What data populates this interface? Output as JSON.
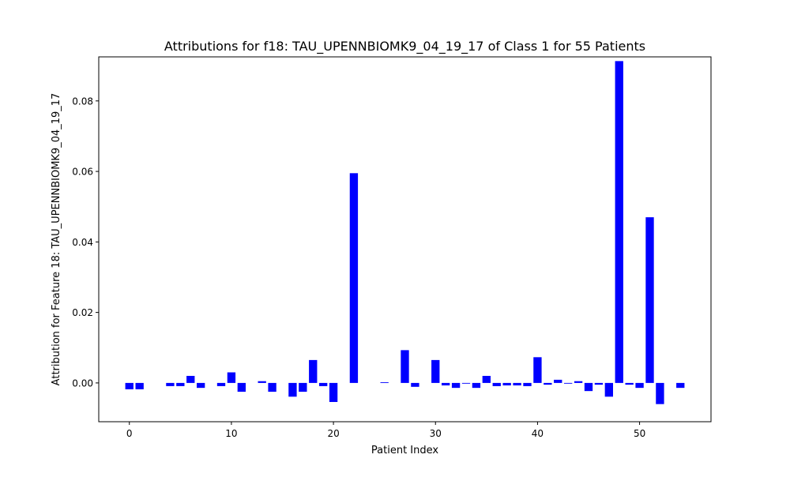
{
  "chart_data": {
    "type": "bar",
    "title": "Attributions for f18: TAU_UPENNBIOMK9_04_19_17 of Class 1 for 55 Patients",
    "xlabel": "Patient Index",
    "ylabel": "Attribution for Feature 18: TAU_UPENNBIOMK9_04_19_17",
    "xlim": [
      -3,
      57
    ],
    "ylim": [
      -0.011,
      0.0925
    ],
    "xticks": [
      0,
      10,
      20,
      30,
      40,
      50
    ],
    "yticks": [
      0.0,
      0.02,
      0.04,
      0.06,
      0.08
    ],
    "ytick_labels": [
      "0.00",
      "0.02",
      "0.04",
      "0.06",
      "0.08"
    ],
    "bar_color": "#0000ff",
    "grid": false,
    "legend": "none",
    "x": [
      0,
      1,
      2,
      3,
      4,
      5,
      6,
      7,
      8,
      9,
      10,
      11,
      12,
      13,
      14,
      15,
      16,
      17,
      18,
      19,
      20,
      21,
      22,
      23,
      24,
      25,
      26,
      27,
      28,
      29,
      30,
      31,
      32,
      33,
      34,
      35,
      36,
      37,
      38,
      39,
      40,
      41,
      42,
      43,
      44,
      45,
      46,
      47,
      48,
      49,
      50,
      51,
      52,
      53,
      54
    ],
    "values": [
      -0.0018,
      -0.0018,
      0.0,
      0.0,
      -0.0009,
      -0.0009,
      0.002,
      -0.0014,
      0.0,
      -0.0009,
      0.003,
      -0.0025,
      0.0,
      0.0005,
      -0.0025,
      0.0,
      -0.0039,
      -0.0025,
      0.0065,
      -0.0009,
      -0.0054,
      0.0,
      0.0595,
      0.0,
      0.0,
      0.0002,
      0.0,
      0.0093,
      -0.0011,
      0.0,
      0.0065,
      -0.0007,
      -0.0014,
      -0.0002,
      -0.0014,
      0.002,
      -0.0009,
      -0.0007,
      -0.0007,
      -0.0009,
      0.0073,
      -0.0005,
      0.0009,
      -0.0002,
      0.0005,
      -0.0023,
      -0.0005,
      -0.0039,
      0.0913,
      -0.0005,
      -0.0014,
      0.047,
      -0.006,
      0.0,
      -0.0014
    ]
  }
}
